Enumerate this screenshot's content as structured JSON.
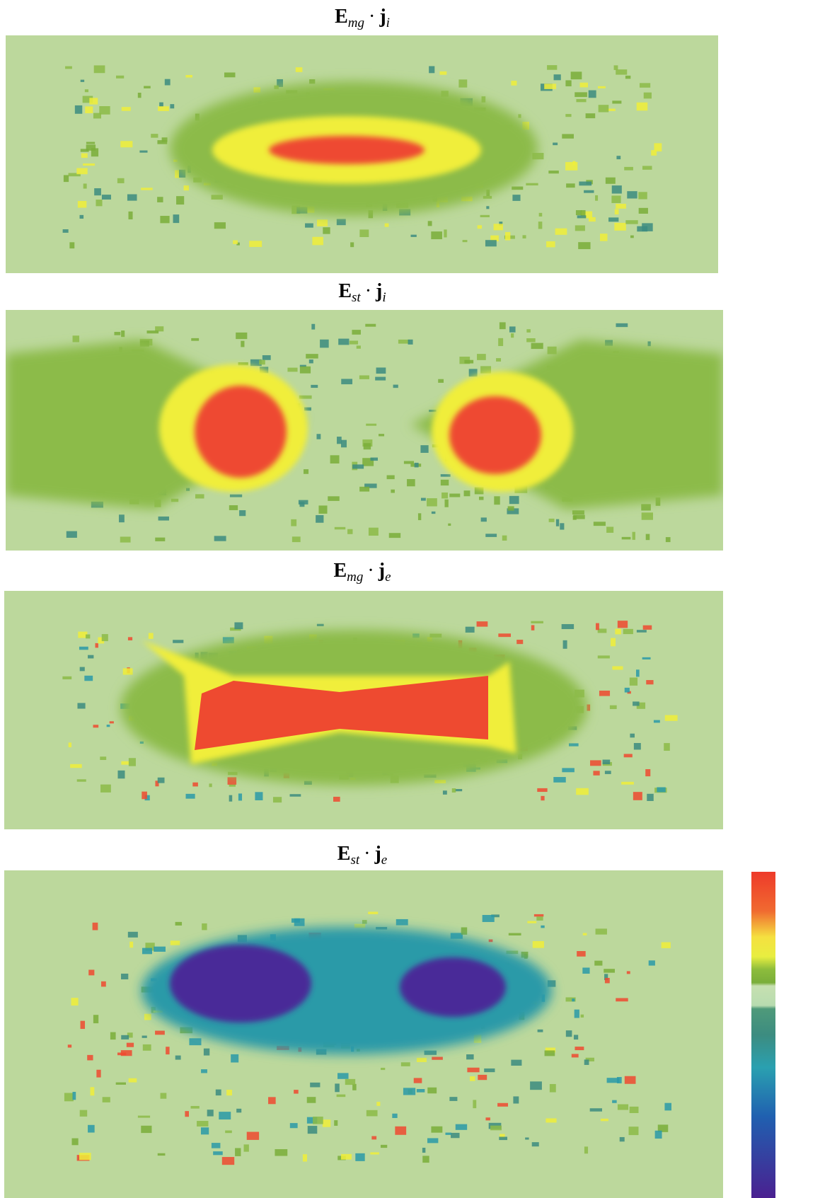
{
  "panels": [
    {
      "title": {
        "field": "E",
        "field_sub": "mg",
        "operator": "·",
        "current": "j",
        "current_sub": "i"
      }
    },
    {
      "title": {
        "field": "E",
        "field_sub": "st",
        "operator": "·",
        "current": "j",
        "current_sub": "i"
      }
    },
    {
      "title": {
        "field": "E",
        "field_sub": "mg",
        "operator": "·",
        "current": "j",
        "current_sub": "e"
      }
    },
    {
      "title": {
        "field": "E",
        "field_sub": "st",
        "operator": "·",
        "current": "j",
        "current_sub": "e"
      }
    }
  ]
}
